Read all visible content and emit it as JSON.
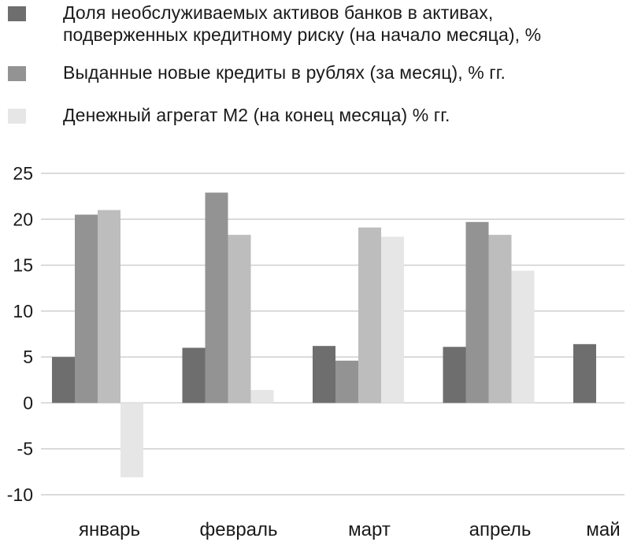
{
  "chart_data": {
    "type": "bar",
    "categories": [
      "январь",
      "февраль",
      "март",
      "апрель",
      "май"
    ],
    "series": [
      {
        "name": "Доля необслуживаемых активов банков в активах,\nподверженных кредитному риску (на начало месяца), %",
        "color": "#6e6e6e",
        "values": [
          5.0,
          6.0,
          6.2,
          6.1,
          6.4
        ]
      },
      {
        "name": "Выданные новые кредиты в рублях (за месяц), % гг.",
        "color": "#939393",
        "values": [
          20.5,
          22.9,
          4.6,
          19.7,
          null
        ]
      },
      {
        "name": "",
        "color": "#bdbdbd",
        "values": [
          21.0,
          18.3,
          19.1,
          18.3,
          null
        ]
      },
      {
        "name": "Денежный агрегат М2 (на конец месяца) % гг.",
        "color": "#e6e6e6",
        "values": [
          -8.1,
          1.4,
          18.1,
          14.4,
          null
        ]
      }
    ],
    "ylim": [
      -10,
      25
    ],
    "yticks": [
      -10,
      -5,
      0,
      5,
      10,
      15,
      20,
      25
    ],
    "grid": true,
    "legend": "top-left"
  }
}
